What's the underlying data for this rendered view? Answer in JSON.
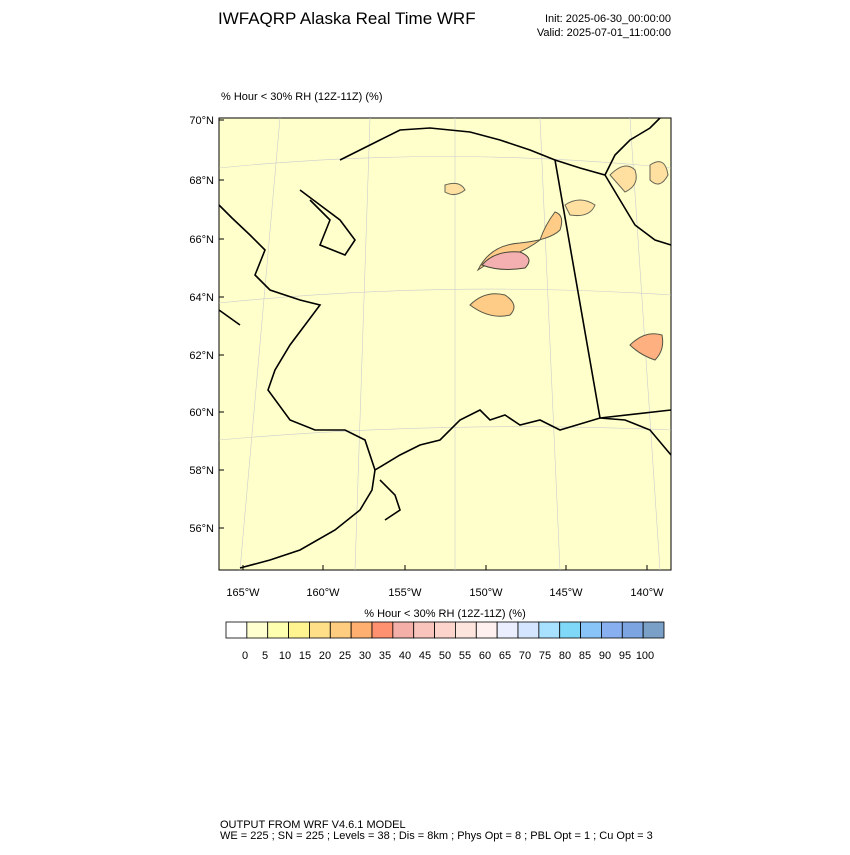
{
  "header": {
    "title": "IWFAQRP Alaska Real Time WRF",
    "init": "Init: 2025-06-30_00:00:00",
    "valid": "Valid: 2025-07-01_11:00:00"
  },
  "map": {
    "subtitle": "% Hour < 30% RH (12Z-11Z)   (%)",
    "lat_labels": [
      "70°N",
      "68°N",
      "66°N",
      "64°N",
      "62°N",
      "60°N",
      "58°N",
      "56°N"
    ],
    "lon_labels": [
      "165°W",
      "160°W",
      "155°W",
      "150°W",
      "145°W",
      "140°W"
    ]
  },
  "legend": {
    "title": "% Hour < 30% RH (12Z-11Z)  (%)",
    "colors": [
      "#ffffff",
      "#ffffd0",
      "#ffffb0",
      "#fff490",
      "#ffe088",
      "#ffcc80",
      "#ffb070",
      "#ff9070",
      "#f4b0a8",
      "#f8c4bc",
      "#fcd4cc",
      "#fde4dc",
      "#fff0f0",
      "#eaeeff",
      "#d4e6ff",
      "#a8e0ff",
      "#80d8f8",
      "#88c4f8",
      "#88b0f0",
      "#7ca4e0",
      "#7aa0c8"
    ],
    "labels": [
      0,
      5,
      10,
      15,
      20,
      25,
      30,
      35,
      40,
      45,
      50,
      55,
      60,
      65,
      70,
      75,
      80,
      85,
      90,
      95,
      100
    ]
  },
  "footer": {
    "line1": "OUTPUT FROM WRF V4.6.1 MODEL",
    "line2": "WE = 225 ; SN = 225 ; Levels = 38 ; Dis = 8km ; Phys Opt = 8 ; PBL Opt = 1 ; Cu Opt = 3"
  }
}
